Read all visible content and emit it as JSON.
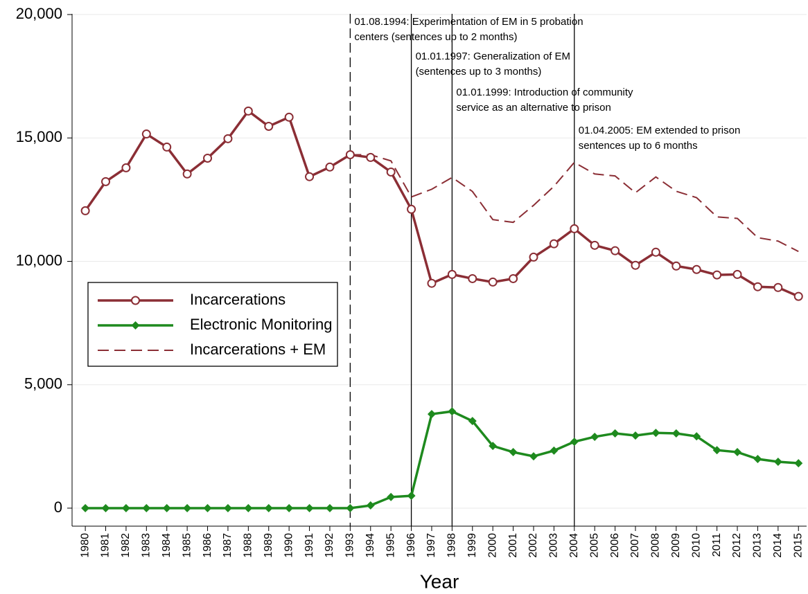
{
  "chart_data": {
    "type": "line",
    "x_label": "Year",
    "x": [
      1980,
      1981,
      1982,
      1983,
      1984,
      1985,
      1986,
      1987,
      1988,
      1989,
      1990,
      1991,
      1992,
      1993,
      1994,
      1995,
      1996,
      1997,
      1998,
      1999,
      2000,
      2001,
      2002,
      2003,
      2004,
      2005,
      2006,
      2007,
      2008,
      2009,
      2010,
      2011,
      2012,
      2013,
      2014,
      2015
    ],
    "series": [
      {
        "name": "Incarcerations",
        "color": "#8b2e35",
        "marker": "circle",
        "dashed": false,
        "values": [
          12050,
          13230,
          13790,
          15160,
          14630,
          13540,
          14180,
          14970,
          16090,
          15470,
          15840,
          13430,
          13820,
          14320,
          14210,
          13620,
          12110,
          9110,
          9470,
          9300,
          9160,
          9300,
          10170,
          10710,
          11320,
          10650,
          10430,
          9840,
          10370,
          9810,
          9670,
          9450,
          9470,
          8970,
          8940,
          8580
        ]
      },
      {
        "name": "Electronic Monitoring",
        "color": "#1e8a1e",
        "marker": "diamond",
        "dashed": false,
        "values": [
          0,
          0,
          0,
          0,
          0,
          0,
          0,
          0,
          0,
          0,
          0,
          0,
          0,
          0,
          110,
          450,
          500,
          3810,
          3920,
          3530,
          2520,
          2270,
          2100,
          2330,
          2690,
          2890,
          3030,
          2940,
          3050,
          3030,
          2910,
          2350,
          2270,
          1990,
          1880,
          1820
        ]
      },
      {
        "name": "Incarcerations + EM",
        "color": "#8b2e35",
        "marker": "none",
        "dashed": true,
        "values": [
          null,
          null,
          null,
          null,
          null,
          null,
          null,
          null,
          null,
          null,
          null,
          null,
          null,
          14320,
          14320,
          14070,
          12610,
          12920,
          13400,
          12830,
          11690,
          11580,
          12270,
          13040,
          14010,
          13540,
          13460,
          12780,
          13420,
          12840,
          12580,
          11800,
          11740,
          10960,
          10820,
          10400
        ]
      }
    ],
    "annotations": [
      {
        "x": 1993,
        "dashed": true,
        "lines": [
          "01.08.1994: Experimentation of EM in 5 probation",
          "centers (sentences up to 2 months)"
        ]
      },
      {
        "x": 1996,
        "dashed": false,
        "lines": [
          "01.01.1997: Generalization of EM",
          "(sentences up to 3 months)"
        ]
      },
      {
        "x": 1998,
        "dashed": false,
        "lines": [
          "01.01.1999: Introduction of community",
          "service as an alternative to prison"
        ]
      },
      {
        "x": 2004,
        "dashed": false,
        "lines": [
          "01.04.2005: EM extended to prison",
          "sentences up to 6 months"
        ]
      }
    ],
    "xlim": [
      1979.35,
      2015.4
    ],
    "xticks": [
      1980,
      1981,
      1982,
      1983,
      1984,
      1985,
      1986,
      1987,
      1988,
      1989,
      1990,
      1991,
      1992,
      1993,
      1994,
      1995,
      1996,
      1997,
      1998,
      1999,
      2000,
      2001,
      2002,
      2003,
      2004,
      2005,
      2006,
      2007,
      2008,
      2009,
      2010,
      2011,
      2012,
      2013,
      2014,
      2015
    ],
    "ylim": [
      -730,
      20000
    ],
    "yticks": [
      {
        "value": 0,
        "label": "0"
      },
      {
        "value": 5000,
        "label": "5,000"
      },
      {
        "value": 10000,
        "label": "10,000"
      },
      {
        "value": 15000,
        "label": "15,000"
      },
      {
        "value": 20000,
        "label": "20,000"
      }
    ],
    "grid": true,
    "legend": "left"
  }
}
